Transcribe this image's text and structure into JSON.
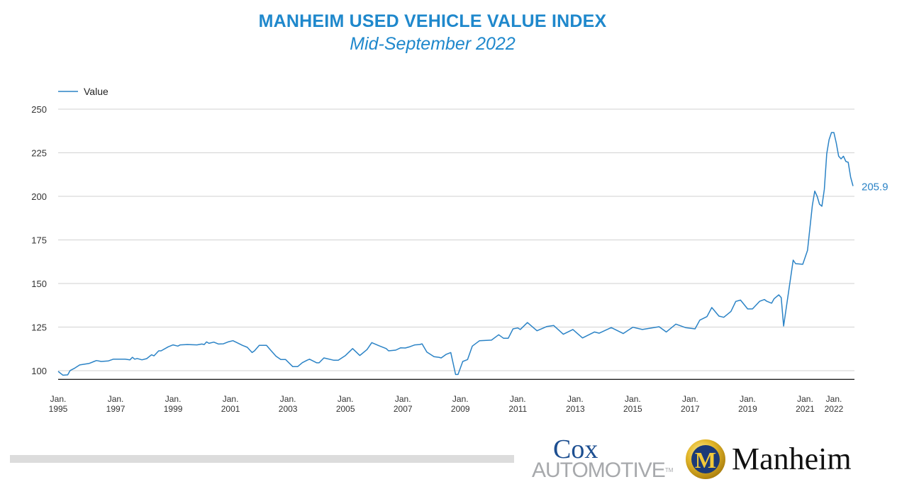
{
  "header": {
    "title": "MANHEIM USED VEHICLE VALUE INDEX",
    "subtitle": "Mid-September 2022"
  },
  "colors": {
    "line": "#2b83c6",
    "title": "#1f88cc",
    "grid": "#d9d9d9",
    "axis": "#222222"
  },
  "chart_data": {
    "type": "line",
    "title": "MANHEIM USED VEHICLE VALUE INDEX",
    "subtitle": "Mid-September 2022",
    "legend": {
      "placement": "top-left",
      "entries": [
        "Value"
      ]
    },
    "grid": true,
    "ylim": [
      95,
      250
    ],
    "yticks": [
      100,
      125,
      150,
      175,
      200,
      225,
      250
    ],
    "xlim": [
      "1995-01",
      "2022-09"
    ],
    "xticks": [
      {
        "date": "1995-01",
        "label": [
          "Jan.",
          "1995"
        ]
      },
      {
        "date": "1997-01",
        "label": [
          "Jan.",
          "1997"
        ]
      },
      {
        "date": "1999-01",
        "label": [
          "Jan.",
          "1999"
        ]
      },
      {
        "date": "2001-01",
        "label": [
          "Jan.",
          "2001"
        ]
      },
      {
        "date": "2003-01",
        "label": [
          "Jan.",
          "2003"
        ]
      },
      {
        "date": "2005-01",
        "label": [
          "Jan.",
          "2005"
        ]
      },
      {
        "date": "2007-01",
        "label": [
          "Jan.",
          "2007"
        ]
      },
      {
        "date": "2009-01",
        "label": [
          "Jan.",
          "2009"
        ]
      },
      {
        "date": "2011-01",
        "label": [
          "Jan.",
          "2011"
        ]
      },
      {
        "date": "2013-01",
        "label": [
          "Jan.",
          "2013"
        ]
      },
      {
        "date": "2015-01",
        "label": [
          "Jan.",
          "2015"
        ]
      },
      {
        "date": "2017-01",
        "label": [
          "Jan.",
          "2017"
        ]
      },
      {
        "date": "2019-01",
        "label": [
          "Jan.",
          "2019"
        ]
      },
      {
        "date": "2021-01",
        "label": [
          "Jan.",
          "2021"
        ]
      },
      {
        "date": "2022-01",
        "label": [
          "Jan.",
          "2022"
        ]
      }
    ],
    "end_label": "205.9",
    "series": [
      {
        "name": "Value",
        "x": [
          "1995-01",
          "1995-03",
          "1995-05",
          "1995-06",
          "1995-08",
          "1995-10",
          "1996-02",
          "1996-04",
          "1996-05",
          "1996-07",
          "1996-10",
          "1996-12",
          "1997-05",
          "1997-07",
          "1997-08",
          "1997-09",
          "1997-10",
          "1997-12",
          "1998-02",
          "1998-04",
          "1998-05",
          "1998-07",
          "1998-08",
          "1998-11",
          "1999-01",
          "1999-03",
          "1999-04",
          "1999-07",
          "1999-11",
          "2000-01",
          "2000-02",
          "2000-03",
          "2000-04",
          "2000-06",
          "2000-08",
          "2000-10",
          "2000-12",
          "2001-02",
          "2001-04",
          "2001-06",
          "2001-08",
          "2001-10",
          "2001-11",
          "2002-01",
          "2002-03",
          "2002-04",
          "2002-06",
          "2002-08",
          "2002-10",
          "2002-12",
          "2003-03",
          "2003-05",
          "2003-07",
          "2003-09",
          "2003-10",
          "2004-01",
          "2004-02",
          "2004-04",
          "2004-08",
          "2004-10",
          "2005-01",
          "2005-04",
          "2005-07",
          "2005-10",
          "2005-12",
          "2006-03",
          "2006-06",
          "2006-07",
          "2006-10",
          "2006-12",
          "2007-02",
          "2007-04",
          "2007-06",
          "2007-08",
          "2007-09",
          "2007-11",
          "2008-02",
          "2008-04",
          "2008-05",
          "2008-07",
          "2008-09",
          "2008-11",
          "2008-12",
          "2009-02",
          "2009-04",
          "2009-06",
          "2009-09",
          "2010-02",
          "2010-05",
          "2010-07",
          "2010-09",
          "2010-11",
          "2011-01",
          "2011-02",
          "2011-05",
          "2011-09",
          "2012-01",
          "2012-04",
          "2012-08",
          "2012-12",
          "2013-04",
          "2013-09",
          "2013-11",
          "2014-04",
          "2014-09",
          "2015-01",
          "2015-05",
          "2015-12",
          "2016-03",
          "2016-07",
          "2016-11",
          "2017-03",
          "2017-05",
          "2017-08",
          "2017-10",
          "2018-01",
          "2018-03",
          "2018-06",
          "2018-08",
          "2018-10",
          "2019-01",
          "2019-03",
          "2019-06",
          "2019-08",
          "2019-09",
          "2019-11",
          "2019-12",
          "2020-02",
          "2020-03",
          "2020-04",
          "2020-08",
          "2020-09",
          "2020-12",
          "2021-02",
          "2021-04",
          "2021-05",
          "2021-06",
          "2021-07",
          "2021-08",
          "2021-09",
          "2021-10",
          "2021-11",
          "2021-12",
          "2022-01",
          "2022-02",
          "2022-03",
          "2022-04",
          "2022-05",
          "2022-06",
          "2022-07",
          "2022-08",
          "2022-09"
        ],
        "values": [
          99.6,
          97.4,
          97.6,
          100.1,
          101.5,
          103.3,
          104.2,
          105.3,
          105.8,
          105.3,
          105.6,
          106.6,
          106.6,
          106.2,
          107.7,
          106.6,
          107.0,
          106.2,
          106.9,
          109.1,
          108.5,
          111.4,
          111.4,
          113.7,
          114.8,
          114.1,
          114.8,
          115.0,
          114.8,
          115.3,
          115.0,
          116.5,
          115.7,
          116.4,
          115.3,
          115.4,
          116.5,
          117.2,
          115.9,
          114.5,
          113.4,
          110.4,
          111.4,
          114.5,
          114.5,
          114.5,
          111.4,
          108.3,
          106.4,
          106.4,
          102.3,
          102.3,
          104.6,
          106.0,
          106.6,
          104.5,
          104.5,
          107.3,
          106.0,
          106.0,
          108.7,
          112.7,
          108.7,
          112.1,
          116.1,
          114.3,
          112.7,
          111.4,
          111.8,
          113.1,
          113.0,
          113.8,
          114.8,
          115.0,
          115.4,
          110.7,
          108.0,
          107.7,
          107.3,
          109.3,
          110.4,
          97.8,
          97.8,
          105.3,
          106.4,
          114.1,
          117.2,
          117.5,
          120.6,
          118.6,
          118.6,
          124.0,
          124.5,
          123.6,
          127.6,
          122.9,
          125.3,
          125.9,
          120.9,
          123.6,
          118.8,
          122.2,
          121.5,
          124.7,
          121.3,
          124.9,
          123.6,
          125.2,
          122.2,
          126.7,
          124.7,
          124.0,
          129.0,
          131.0,
          136.2,
          131.3,
          130.6,
          134.0,
          139.7,
          140.5,
          135.4,
          135.4,
          139.8,
          140.8,
          139.8,
          138.7,
          141.2,
          143.5,
          141.9,
          125.6,
          163.4,
          161.4,
          161.0,
          169.0,
          194.7,
          203.0,
          200.0,
          195.5,
          194.3,
          204.0,
          224.4,
          232.5,
          236.6,
          236.6,
          230.5,
          223.0,
          221.5,
          223.0,
          220.0,
          219.5,
          211.0,
          205.9
        ]
      }
    ]
  },
  "logos": {
    "cox": {
      "line1": "Cox",
      "line2": "AUTOMOTIVE",
      "tm": "TM"
    },
    "manheim": {
      "name": "Manheim",
      "emblem_letter": "M"
    }
  }
}
